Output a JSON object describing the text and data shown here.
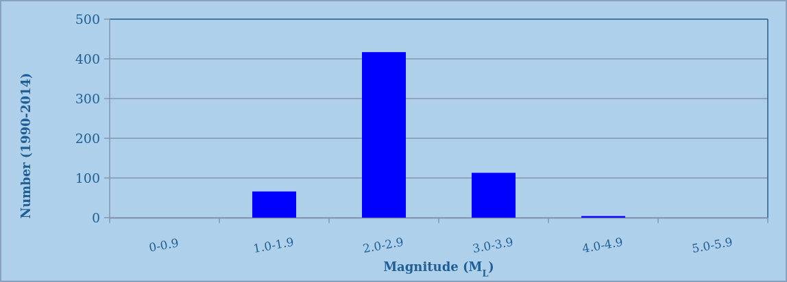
{
  "chart_data": {
    "type": "bar",
    "xlabel": "Magnitude (M$_{L}$)",
    "ylabel": "Number (1990-2014)",
    "categories": [
      "0-0.9",
      "1.0-1.9",
      "2.0-2.9",
      "3.0-3.9",
      "4.0-4.9",
      "5.0-5.9"
    ],
    "values": [
      0,
      66,
      417,
      113,
      4,
      0
    ],
    "color": "#0000ff",
    "ylim": [
      0,
      500
    ],
    "yticks": [
      0,
      100,
      200,
      300,
      400,
      500
    ],
    "grid": "y"
  }
}
